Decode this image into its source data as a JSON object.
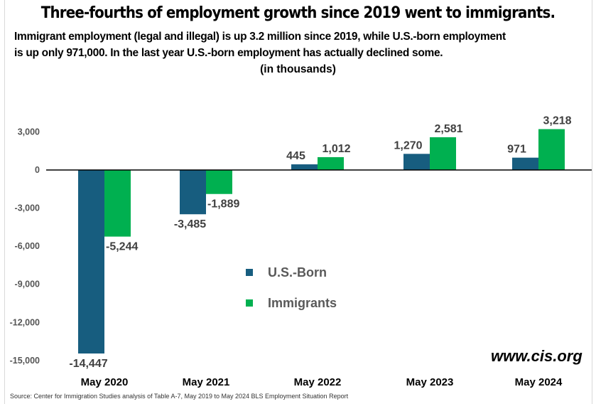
{
  "header": {
    "title": "Three-fourths of employment growth since 2019 went to immigrants.",
    "subtitle_line1": "Immigrant employment (legal and illegal) is up 3.2 million since 2019, while U.S.-born employment",
    "subtitle_line2": "is up only 971,000.  In the last year U.S.-born employment has actually declined some.",
    "units": "(in thousands)"
  },
  "brand": "www.cis.org",
  "source": "Source: Center for Immigration Studies analysis of Table A-7, May 2019 to May 2024 BLS Employment Situation Report",
  "colors": {
    "us_born": "#175d7f",
    "immigrants": "#00b050"
  },
  "chart_data": {
    "type": "bar",
    "title": "Three-fourths of employment growth since 2019 went to immigrants.",
    "xlabel": "",
    "ylabel": "",
    "units": "thousands",
    "categories": [
      "May 2020",
      "May 2021",
      "May 2022",
      "May 2023",
      "May 2024"
    ],
    "series": [
      {
        "name": "U.S.-Born",
        "color": "#175d7f",
        "values": [
          -14447,
          -3485,
          445,
          1270,
          971
        ],
        "labels": [
          "-14,447",
          "-3,485",
          "445",
          "1,270",
          "971"
        ]
      },
      {
        "name": "Immigrants",
        "color": "#00b050",
        "values": [
          -5244,
          -1889,
          1012,
          2581,
          3218
        ],
        "labels": [
          "-5,244",
          "-1,889",
          "1,012",
          "2,581",
          "3,218"
        ]
      }
    ],
    "ylim": [
      -15000,
      3000
    ],
    "yticks": [
      3000,
      0,
      -3000,
      -6000,
      -9000,
      -12000,
      -15000
    ],
    "ytick_labels": [
      "3,000",
      "0",
      "-3,000",
      "-6,000",
      "-9,000",
      "-12,000",
      "-15,000"
    ],
    "grid": false,
    "legend": "center"
  }
}
